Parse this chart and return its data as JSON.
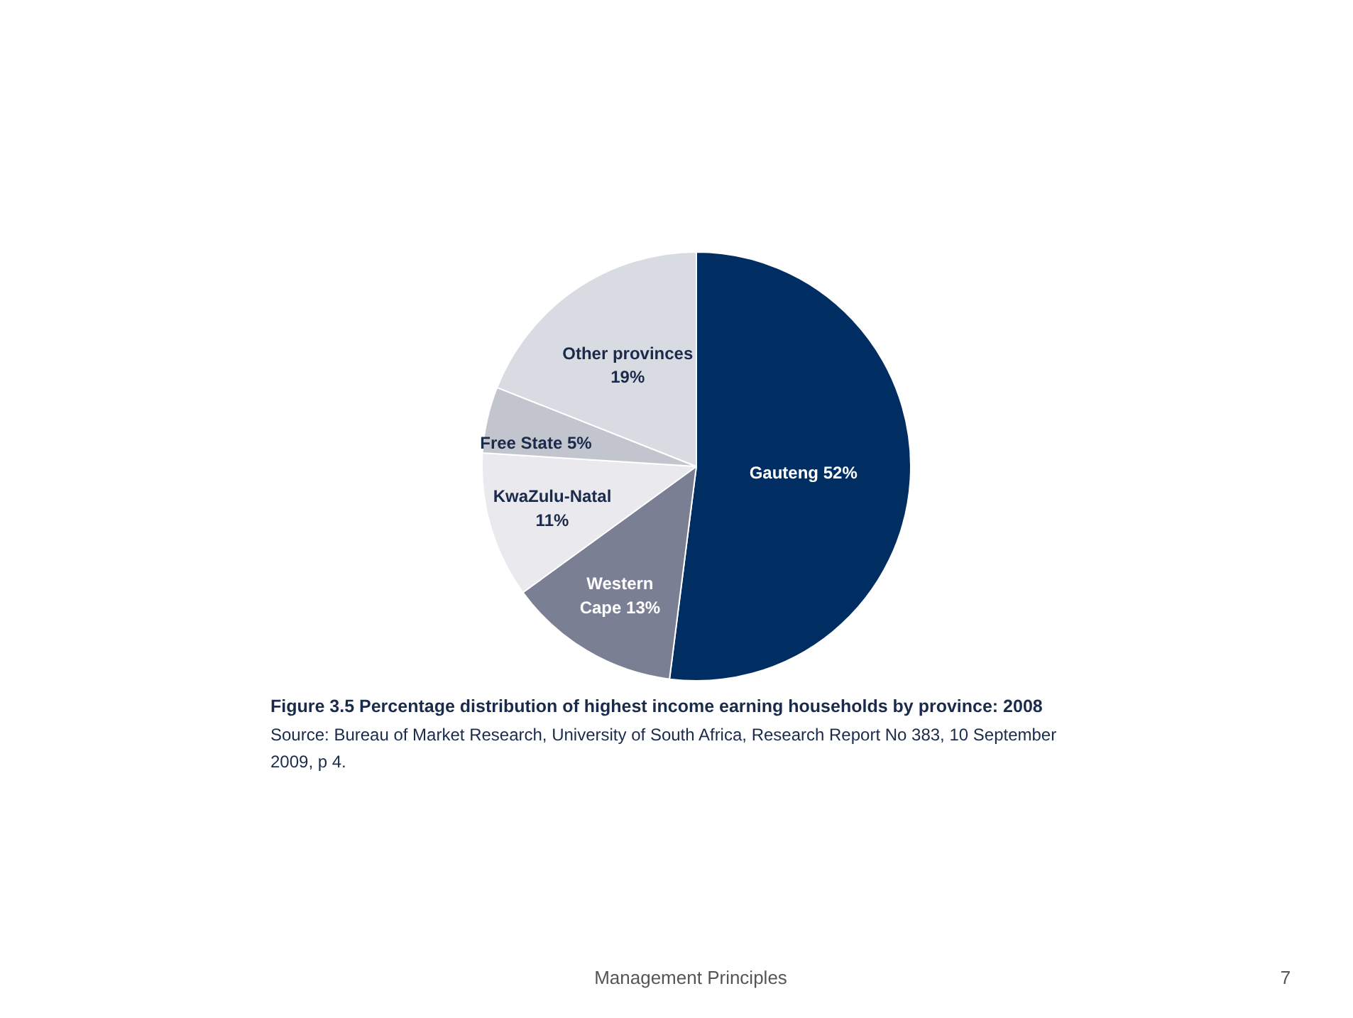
{
  "chart_data": {
    "type": "pie",
    "title": "Figure 3.5  Percentage distribution of highest income earning households by province: 2008",
    "categories": [
      "Gauteng",
      "Western Cape",
      "KwaZulu-Natal",
      "Free State",
      "Other provinces"
    ],
    "values": [
      52,
      13,
      11,
      5,
      19
    ],
    "colors": [
      "#002d62",
      "#7a7f93",
      "#e9e9ee",
      "#c3c5ce",
      "#d9dbe3"
    ],
    "value_labels": [
      "52%",
      "13%",
      "11%",
      "5%",
      "19%"
    ],
    "annotations": [
      "Source: Bureau of Market Research, University of South Africa, Research Report No 383, 10 September 2009, p 4.",
      "Management Principles",
      "7"
    ]
  }
}
